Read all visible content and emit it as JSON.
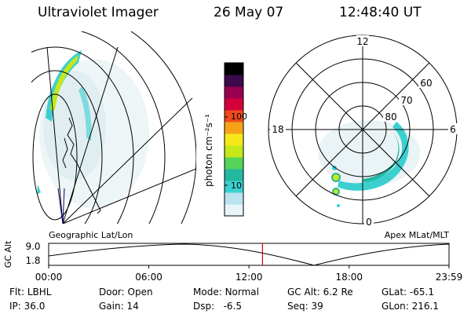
{
  "header": {
    "instrument": "Ultraviolet Imager",
    "date": "26 May 07",
    "time": "12:48:40 UT"
  },
  "colorbar": {
    "label": "photon cm⁻²s⁻¹",
    "ticks": [
      "100",
      "10"
    ],
    "scale": "log",
    "colors": [
      "#e8f4f8",
      "#b9e3ee",
      "#3ccfd0",
      "#23b8a0",
      "#55d45a",
      "#c5e81a",
      "#f4e81a",
      "#f6a31a",
      "#ef4a1a",
      "#d3003a",
      "#9a0050",
      "#3a0a4a",
      "#000000"
    ]
  },
  "map_left": {
    "label": "Geographic Lat/Lon"
  },
  "polar": {
    "label": "Apex MLat/MLT",
    "lat_labels": [
      "80",
      "70",
      "60"
    ],
    "mlt_labels": {
      "top": "12",
      "left": "18",
      "right": "6",
      "bottom": "0"
    }
  },
  "altitude_plot": {
    "ylabel": "GC Alt",
    "ytick_top": "9.0",
    "ytick_bottom": "1.8",
    "xticks": [
      "00:00",
      "06:00",
      "12:00",
      "18:00",
      "23:59"
    ],
    "current_time_marker_hour": 12.81,
    "marker_color": "#d00000"
  },
  "status": {
    "row1": [
      {
        "label": "Flt:",
        "value": "LBHL"
      },
      {
        "label": "Door:",
        "value": "Open"
      },
      {
        "label": "Mode:",
        "value": "Normal"
      },
      {
        "label": "GC Alt:",
        "value": "6.2 Re"
      },
      {
        "label": "GLat:",
        "value": "-65.1"
      }
    ],
    "row2": [
      {
        "label": "IP:",
        "value": "36.0"
      },
      {
        "label": "Gain:",
        "value": "14"
      },
      {
        "label": "Dsp:",
        "value": "  -6.5"
      },
      {
        "label": "Seq:",
        "value": "39"
      },
      {
        "label": "GLon:",
        "value": "216.1"
      }
    ]
  }
}
